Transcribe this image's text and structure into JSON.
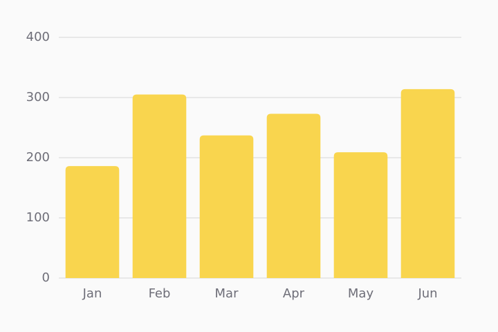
{
  "chart_data": {
    "type": "bar",
    "categories": [
      "Jan",
      "Feb",
      "Mar",
      "Apr",
      "May",
      "Jun"
    ],
    "values": [
      186,
      305,
      237,
      273,
      209,
      314
    ],
    "color": "#f9d54e",
    "ylim": [
      0,
      400
    ],
    "yticks": [
      0,
      100,
      200,
      300,
      400
    ],
    "grid": true
  }
}
